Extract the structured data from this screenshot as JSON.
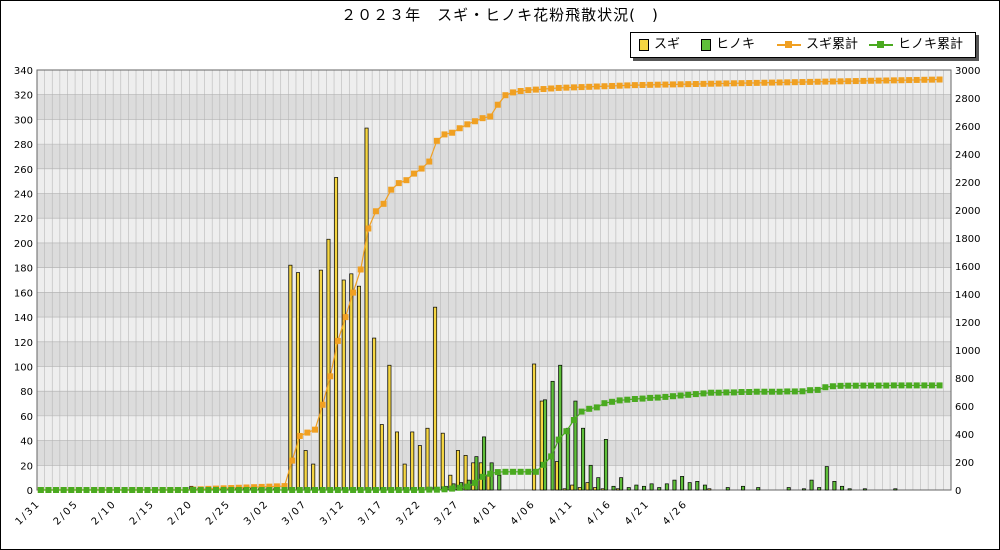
{
  "colors": {
    "sugi": "#f5d642",
    "hinoki": "#5fbf3a",
    "sugi_cum": "#f0a022",
    "hinoki_cum": "#4aaa20",
    "band_dark": "#dcdcdc",
    "band_light": "#eeeeee"
  },
  "chart_data": {
    "type": "bar",
    "title": "２０２３年　スギ・ヒノキ花粉飛散状況(　)",
    "start_date": "1/31",
    "x_tick_labels": [
      "1/31",
      "2/05",
      "2/10",
      "2/15",
      "2/20",
      "2/25",
      "3/02",
      "3/07",
      "3/12",
      "3/17",
      "3/22",
      "3/27",
      "4/01",
      "4/06",
      "4/11",
      "4/16",
      "4/21",
      "4/26"
    ],
    "y_left": {
      "min": 0,
      "max": 340,
      "step": 20
    },
    "y_right": {
      "min": 0,
      "max": 3000,
      "step": 200
    },
    "grid": true,
    "legend_position": "top-right",
    "series": [
      {
        "name": "スギ",
        "kind": "bar",
        "axis": "left",
        "values": [
          0,
          0,
          0,
          0,
          0,
          0,
          0,
          0,
          0,
          0,
          0,
          0,
          0,
          0,
          0,
          0,
          0,
          0,
          0,
          0,
          3,
          1,
          1,
          1,
          1,
          1,
          1,
          2,
          2,
          1,
          1,
          1,
          0,
          182,
          176,
          32,
          21,
          178,
          203,
          253,
          170,
          175,
          165,
          293,
          123,
          53,
          101,
          47,
          21,
          47,
          36,
          50,
          148,
          46,
          12,
          32,
          28,
          22,
          22,
          12,
          0,
          0,
          0,
          0,
          0,
          102,
          72,
          0,
          23,
          1,
          4,
          2,
          6,
          2,
          1,
          0,
          1,
          0,
          0,
          0,
          0,
          0,
          0,
          0,
          0,
          0,
          0,
          0,
          1,
          0,
          0,
          0,
          0,
          0,
          0,
          0,
          0,
          0,
          0,
          0,
          0,
          0,
          0,
          0,
          0,
          0,
          0,
          0,
          0,
          0,
          0,
          0,
          0,
          0,
          0,
          0,
          0,
          0,
          0,
          0
        ]
      },
      {
        "name": "ヒノキ",
        "kind": "bar",
        "axis": "left",
        "values": [
          0,
          0,
          0,
          0,
          0,
          0,
          0,
          0,
          0,
          0,
          0,
          0,
          0,
          0,
          0,
          0,
          0,
          0,
          0,
          0,
          0,
          0,
          0,
          0,
          0,
          0,
          0,
          0,
          0,
          0,
          0,
          0,
          0,
          0,
          0,
          0,
          0,
          0,
          0,
          0,
          0,
          0,
          0,
          0,
          0,
          0,
          0,
          0,
          0,
          0,
          0,
          2,
          0,
          3,
          5,
          6,
          8,
          27,
          43,
          22,
          12,
          0,
          0,
          0,
          0,
          0,
          73,
          88,
          101,
          50,
          72,
          50,
          20,
          10,
          41,
          3,
          10,
          2,
          4,
          3,
          5,
          2,
          5,
          8,
          11,
          6,
          7,
          4,
          0,
          0,
          2,
          0,
          3,
          0,
          2,
          0,
          0,
          0,
          2,
          0,
          1,
          8,
          2,
          19,
          7,
          3,
          1,
          0,
          1,
          0,
          0,
          0,
          1,
          0,
          0,
          0,
          0,
          0,
          0
        ]
      },
      {
        "name": "スギ累計",
        "kind": "line",
        "axis": "right",
        "values": [
          0,
          0,
          0,
          0,
          0,
          0,
          0,
          0,
          0,
          0,
          0,
          0,
          0,
          0,
          0,
          0,
          0,
          0,
          0,
          0,
          3,
          5,
          8,
          10,
          12,
          14,
          16,
          18,
          20,
          22,
          24,
          26,
          28,
          210,
          386,
          410,
          431,
          609,
          812,
          1065,
          1235,
          1410,
          1575,
          1868,
          1991,
          2044,
          2145,
          2192,
          2213,
          2260,
          2296,
          2346,
          2494,
          2540,
          2552,
          2584,
          2612,
          2634,
          2656,
          2668,
          2752,
          2820,
          2840,
          2850,
          2856,
          2860,
          2864,
          2868,
          2872,
          2874,
          2876,
          2878,
          2880,
          2882,
          2884,
          2886,
          2888,
          2890,
          2892,
          2893,
          2894,
          2895,
          2896,
          2897,
          2898,
          2899,
          2900,
          2901,
          2902,
          2903,
          2904,
          2905,
          2906,
          2907,
          2908,
          2909,
          2910,
          2911,
          2912,
          2913,
          2914,
          2915,
          2916,
          2917,
          2918,
          2919,
          2920,
          2921,
          2922,
          2923,
          2924,
          2925,
          2926,
          2927,
          2928,
          2929,
          2930,
          2931,
          2932
        ]
      },
      {
        "name": "ヒノキ累計",
        "kind": "line",
        "axis": "right",
        "values": [
          0,
          0,
          0,
          0,
          0,
          0,
          0,
          0,
          0,
          0,
          0,
          0,
          0,
          0,
          0,
          0,
          0,
          0,
          0,
          0,
          0,
          0,
          0,
          0,
          0,
          0,
          0,
          0,
          0,
          0,
          0,
          0,
          0,
          0,
          0,
          0,
          0,
          0,
          0,
          0,
          0,
          0,
          0,
          0,
          0,
          0,
          0,
          0,
          0,
          0,
          0,
          2,
          2,
          5,
          10,
          16,
          24,
          51,
          94,
          116,
          128,
          130,
          130,
          130,
          130,
          130,
          180,
          240,
          360,
          420,
          500,
          560,
          580,
          590,
          620,
          630,
          640,
          645,
          650,
          653,
          658,
          660,
          665,
          670,
          675,
          680,
          685,
          690,
          695,
          695,
          697,
          697,
          700,
          700,
          702,
          702,
          702,
          702,
          704,
          704,
          705,
          713,
          715,
          734,
          741,
          744,
          745,
          745,
          746,
          746,
          746,
          746,
          747,
          747,
          747,
          747,
          747,
          747,
          747
        ]
      }
    ]
  }
}
